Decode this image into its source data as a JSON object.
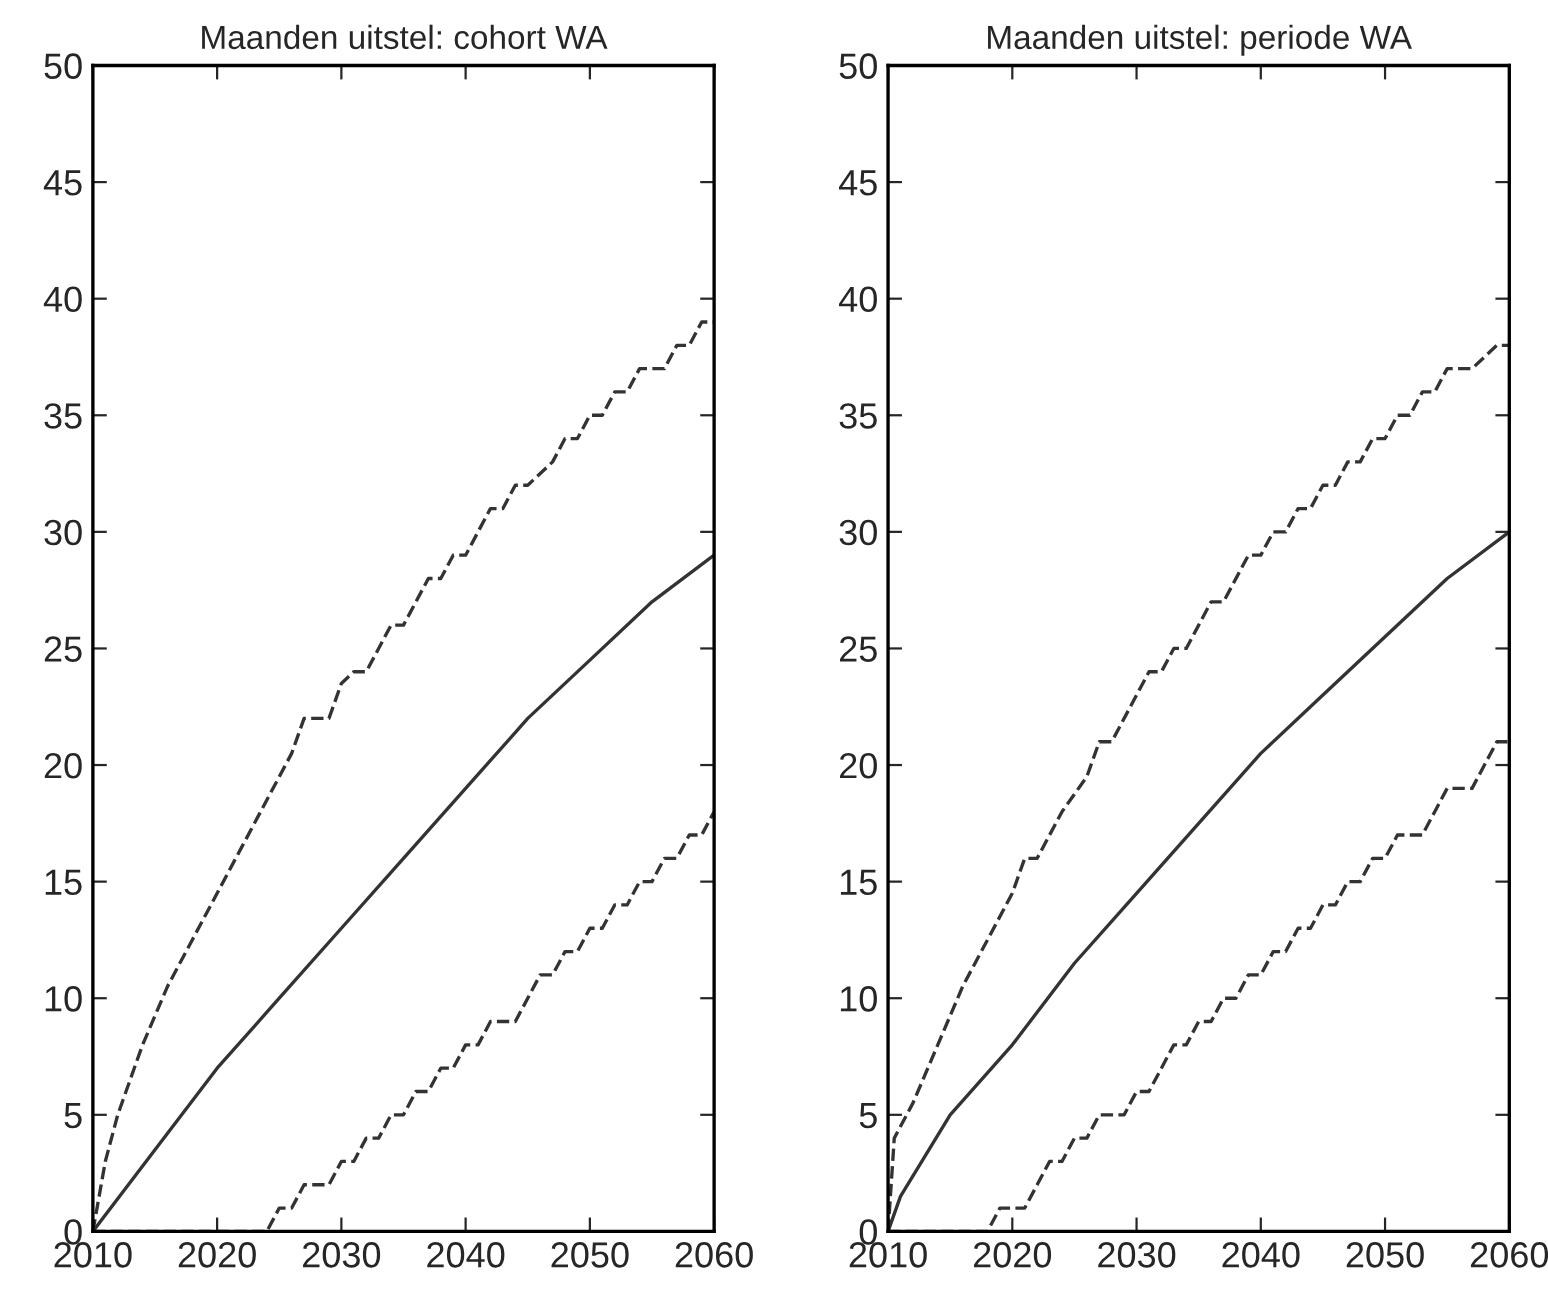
{
  "chart_data": [
    {
      "type": "line",
      "title": "Maanden uitstel: cohort WA",
      "xlim": [
        2010,
        2060
      ],
      "ylim": [
        0,
        50
      ],
      "xticks": [
        2010,
        2020,
        2030,
        2040,
        2050,
        2060
      ],
      "yticks": [
        0,
        5,
        10,
        15,
        20,
        25,
        30,
        35,
        40,
        45,
        50
      ],
      "grid": false,
      "legend": false,
      "series": [
        {
          "color": "#333333",
          "line_style": "dashed",
          "x": [
            2010,
            2011,
            2012,
            2014,
            2016,
            2018,
            2020,
            2022,
            2024,
            2026,
            2027,
            2029,
            2030,
            2031,
            2032,
            2034,
            2035,
            2037,
            2038,
            2039,
            2040,
            2042,
            2043,
            2044,
            2045,
            2047,
            2048,
            2049,
            2050,
            2051,
            2052,
            2053,
            2054,
            2056,
            2057,
            2058,
            2059,
            2060
          ],
          "values": [
            0,
            3,
            5,
            8,
            10.5,
            12.5,
            14.5,
            16.5,
            18.5,
            20.5,
            22,
            22,
            23.5,
            24,
            24,
            26,
            26,
            28,
            28,
            29,
            29,
            31,
            31,
            32,
            32,
            33,
            34,
            34,
            35,
            35,
            36,
            36,
            37,
            37,
            38,
            38,
            39,
            39
          ]
        },
        {
          "color": "#333333",
          "line_style": "solid",
          "x": [
            2010,
            2015,
            2020,
            2025,
            2030,
            2035,
            2040,
            2045,
            2050,
            2055,
            2060
          ],
          "values": [
            0,
            3.5,
            7,
            10,
            13,
            16,
            19,
            22,
            24.5,
            27,
            29
          ]
        },
        {
          "color": "#333333",
          "line_style": "dashed",
          "x": [
            2010,
            2024,
            2025,
            2026,
            2027,
            2029,
            2030,
            2031,
            2032,
            2033,
            2034,
            2035,
            2036,
            2037,
            2038,
            2039,
            2040,
            2041,
            2042,
            2044,
            2045,
            2046,
            2047,
            2048,
            2049,
            2050,
            2051,
            2052,
            2053,
            2054,
            2055,
            2056,
            2057,
            2058,
            2059,
            2060
          ],
          "values": [
            0,
            0,
            1,
            1,
            2,
            2,
            3,
            3,
            4,
            4,
            5,
            5,
            6,
            6,
            7,
            7,
            8,
            8,
            9,
            9,
            10,
            11,
            11,
            12,
            12,
            13,
            13,
            14,
            14,
            15,
            15,
            16,
            16,
            17,
            17,
            18
          ]
        }
      ]
    },
    {
      "type": "line",
      "title": "Maanden uitstel: periode WA",
      "xlim": [
        2010,
        2060
      ],
      "ylim": [
        0,
        50
      ],
      "xticks": [
        2010,
        2020,
        2030,
        2040,
        2050,
        2060
      ],
      "yticks": [
        0,
        5,
        10,
        15,
        20,
        25,
        30,
        35,
        40,
        45,
        50
      ],
      "grid": false,
      "legend": false,
      "series": [
        {
          "color": "#333333",
          "line_style": "dashed",
          "x": [
            2010,
            2010.5,
            2012,
            2014,
            2016,
            2018,
            2020,
            2021,
            2022,
            2024,
            2026,
            2027,
            2028,
            2030,
            2031,
            2032,
            2033,
            2034,
            2035,
            2036,
            2037,
            2039,
            2040,
            2041,
            2042,
            2043,
            2044,
            2045,
            2046,
            2047,
            2048,
            2049,
            2050,
            2051,
            2052,
            2053,
            2054,
            2055,
            2057,
            2059,
            2060
          ],
          "values": [
            0,
            4,
            5.5,
            8,
            10.5,
            12.5,
            14.5,
            16,
            16,
            18,
            19.5,
            21,
            21,
            23,
            24,
            24,
            25,
            25,
            26,
            27,
            27,
            29,
            29,
            30,
            30,
            31,
            31,
            32,
            32,
            33,
            33,
            34,
            34,
            35,
            35,
            36,
            36,
            37,
            37,
            38,
            38
          ]
        },
        {
          "color": "#333333",
          "line_style": "solid",
          "x": [
            2010,
            2011,
            2015,
            2020,
            2025,
            2030,
            2035,
            2040,
            2045,
            2050,
            2055,
            2060
          ],
          "values": [
            0,
            1.5,
            5,
            8,
            11.5,
            14.5,
            17.5,
            20.5,
            23,
            25.5,
            28,
            30
          ]
        },
        {
          "color": "#333333",
          "line_style": "dashed",
          "x": [
            2010,
            2018,
            2019,
            2021,
            2022,
            2023,
            2024,
            2025,
            2026,
            2027,
            2029,
            2030,
            2031,
            2032,
            2033,
            2034,
            2035,
            2036,
            2037,
            2038,
            2039,
            2040,
            2041,
            2042,
            2043,
            2044,
            2045,
            2046,
            2047,
            2048,
            2049,
            2050,
            2051,
            2053,
            2054,
            2055,
            2057,
            2059,
            2060
          ],
          "values": [
            0,
            0,
            1,
            1,
            2,
            3,
            3,
            4,
            4,
            5,
            5,
            6,
            6,
            7,
            8,
            8,
            9,
            9,
            10,
            10,
            11,
            11,
            12,
            12,
            13,
            13,
            14,
            14,
            15,
            15,
            16,
            16,
            17,
            17,
            18,
            19,
            19,
            21,
            21
          ]
        }
      ]
    }
  ]
}
